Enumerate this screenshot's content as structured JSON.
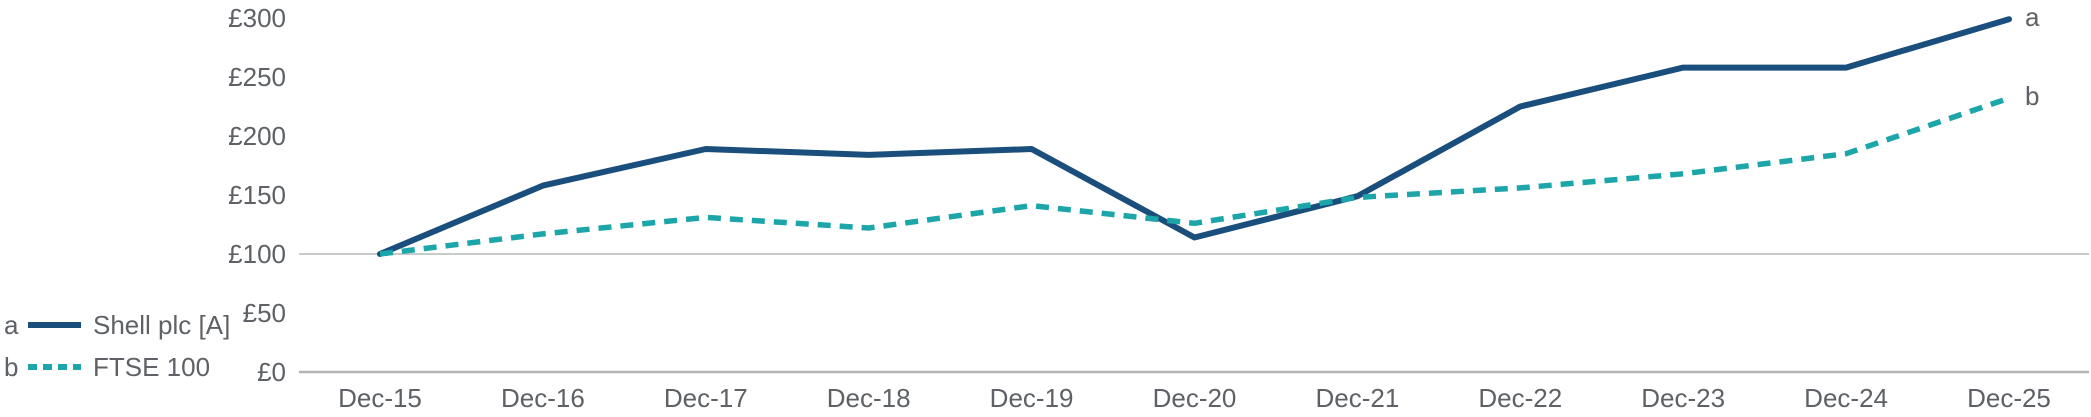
{
  "chart_data": {
    "type": "line",
    "title": "",
    "xlabel": "",
    "ylabel": "",
    "categories": [
      "Dec-15",
      "Dec-16",
      "Dec-17",
      "Dec-18",
      "Dec-19",
      "Dec-20",
      "Dec-21",
      "Dec-22",
      "Dec-23",
      "Dec-24",
      "Dec-25"
    ],
    "series": [
      {
        "id": "a",
        "name": "Shell plc [A]",
        "style": "solid",
        "color": "#1a4e7d",
        "values": [
          100,
          158,
          189,
          184,
          189,
          114,
          149,
          225,
          258,
          258,
          299
        ]
      },
      {
        "id": "b",
        "name": "FTSE 100",
        "style": "dashed",
        "color": "#1ca6a9",
        "values": [
          100,
          117,
          131,
          122,
          141,
          126,
          148,
          156,
          168,
          185,
          232
        ]
      }
    ],
    "ylim": [
      0,
      300
    ],
    "ytick_step": 50,
    "ytick_labels": [
      "£0",
      "£50",
      "£100",
      "£150",
      "£200",
      "£250",
      "£300"
    ],
    "gridlines_drawn_at": [
      100
    ],
    "baseline_value": 0,
    "legend_position": "bottom-left",
    "grid": "horizontal line at £100 only, plus £0 axis"
  },
  "legend": {
    "items": [
      {
        "key": "a",
        "label": "Shell plc [A]"
      },
      {
        "key": "b",
        "label": "FTSE 100"
      }
    ]
  },
  "end_labels": {
    "a": "a",
    "b": "b"
  },
  "colors": {
    "series_shell": "#1a4e7d",
    "series_ftse": "#1ca6a9",
    "axis_text": "#5e6266",
    "gridline": "#c9cacc",
    "axis_line": "#b3b5b7",
    "background": "#ffffff"
  }
}
